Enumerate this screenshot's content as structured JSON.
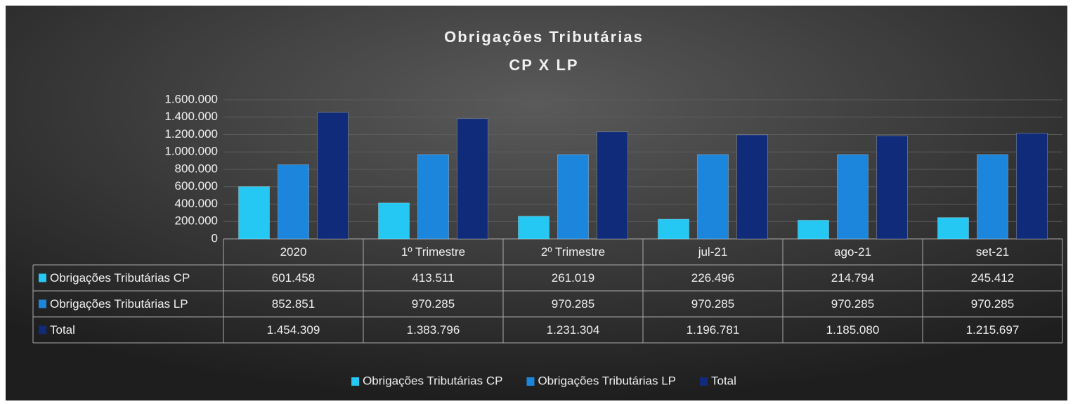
{
  "chart_data": {
    "type": "bar",
    "title": "Obrigações Tributárias",
    "subtitle": "CP X LP",
    "categories": [
      "2020",
      "1º Trimestre",
      "2º Trimestre",
      "jul-21",
      "ago-21",
      "set-21"
    ],
    "series": [
      {
        "name": "Obrigações Tributárias CP",
        "color": "#25c8f2",
        "values": [
          601458,
          413511,
          261019,
          226496,
          214794,
          245412
        ],
        "value_labels": [
          "601.458",
          "413.511",
          "261.019",
          "226.496",
          "214.794",
          "245.412"
        ]
      },
      {
        "name": "Obrigações Tributárias LP",
        "color": "#1c86dc",
        "values": [
          852851,
          970285,
          970285,
          970285,
          970285,
          970285
        ],
        "value_labels": [
          "852.851",
          "970.285",
          "970.285",
          "970.285",
          "970.285",
          "970.285"
        ]
      },
      {
        "name": "Total",
        "color": "#0f2b7a",
        "values": [
          1454309,
          1383796,
          1231304,
          1196781,
          1185080,
          1215697
        ],
        "value_labels": [
          "1.454.309",
          "1.383.796",
          "1.231.304",
          "1.196.781",
          "1.185.080",
          "1.215.697"
        ]
      }
    ],
    "ylim": [
      0,
      1600000
    ],
    "yticks": [
      0,
      {
        "value": 200000,
        "label": "200.000"
      },
      {
        "value": 400000,
        "label": "400.000"
      },
      {
        "value": 600000,
        "label": "600.000"
      },
      {
        "value": 800000,
        "label": "800.000"
      },
      {
        "value": 1000000,
        "label": "1.000.000"
      },
      {
        "value": 1200000,
        "label": "1.200.000"
      },
      {
        "value": 1400000,
        "label": "1.400.000"
      },
      {
        "value": 1600000,
        "label": "1.600.000"
      }
    ],
    "grid": true,
    "legend": "bottom"
  }
}
